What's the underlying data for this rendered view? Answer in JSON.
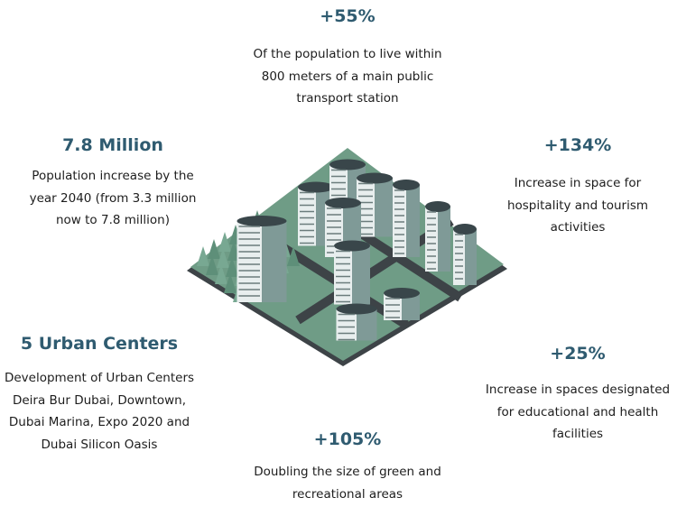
{
  "colors": {
    "heading": "#2f5b70",
    "text": "#1d1d1d",
    "ground": "#5b8a74",
    "road": "#3d4347"
  },
  "stats": [
    {
      "id": "transport",
      "value": "+55%",
      "lines": [
        "Of the population to live within",
        "800 meters of a main public",
        "transport station"
      ]
    },
    {
      "id": "population",
      "value": "7.8 Million",
      "lines": [
        "Population increase by the",
        "year 2040 (from 3.3 million",
        "now to 7.8 million)"
      ]
    },
    {
      "id": "hospitality",
      "value": "+134%",
      "lines": [
        "Increase in space for",
        "hospitality and tourism",
        "activities"
      ]
    },
    {
      "id": "urban-centers",
      "value": "5 Urban Centers",
      "lines": [
        "Development of Urban Centers",
        "Deira Bur Dubai, Downtown,",
        "Dubai Marina, Expo 2020 and",
        "Dubai Silicon Oasis"
      ]
    },
    {
      "id": "education-health",
      "value": "+25%",
      "lines": [
        "Increase in spaces designated",
        "for educational and health",
        "facilities"
      ]
    },
    {
      "id": "green",
      "value": "+105%",
      "lines": [
        "Doubling the size of green and",
        "recreational areas"
      ]
    }
  ],
  "illustration": "isometric-city"
}
